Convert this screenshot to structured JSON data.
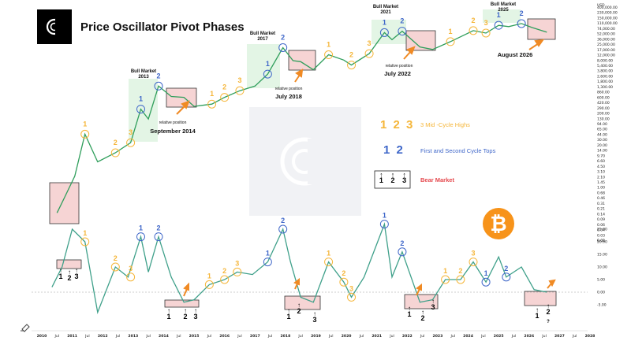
{
  "header": {
    "title": "Price Oscillator Pivot Phases",
    "currency": "USD"
  },
  "colors": {
    "price_line": "#2f9e5b",
    "oscillator_line": "#3fa08a",
    "mid_cycle": "#f5b63a",
    "cycle_top": "#3f67c9",
    "bear_market": "#e5484d",
    "bull_zone": "#d9f2dc",
    "bear_box": "#f6d4d4",
    "arrow_orange": "#f08a24",
    "btc_orange": "#f7931a"
  },
  "legend": {
    "mid_cycle_nums": "1 2 3",
    "mid_cycle_label": "3 Mid -Cycle Highs",
    "tops_nums": "1 2",
    "tops_label": "First and Second Cycle Tops",
    "bear_nums": [
      "1",
      "2",
      "3"
    ],
    "bear_label": "Bear Market"
  },
  "annotations": {
    "bull_2013": [
      "Bull Market",
      "2013"
    ],
    "bull_2017": [
      "Bull Market",
      "2017"
    ],
    "bull_2021": [
      "Bull Market",
      "2021"
    ],
    "bull_2025": [
      "Bull Market",
      "2025"
    ],
    "relpos_2014": [
      "relative position",
      "September 2014"
    ],
    "relpos_2018": [
      "relative position",
      "July 2018"
    ],
    "relpos_2022": [
      "relative position",
      "July 2022"
    ],
    "aug_2026": "August 2026",
    "question_mark": "?"
  },
  "y_axis_right": [
    "400,000.00",
    "230,000.00",
    "150,000.00",
    "110,000.00",
    "74,000.00",
    "52,000.00",
    "36,000.00",
    "25,000.00",
    "17,000.00",
    "12,000.00",
    "8,000.00",
    "5,400.00",
    "3,800.00",
    "2,600.00",
    "1,800.00",
    "1,300.00",
    "860.00",
    "600.00",
    "420.00",
    "290.00",
    "200.00",
    "130.00",
    "94.00",
    "65.00",
    "44.00",
    "30.00",
    "20.00",
    "14.00",
    "9.70",
    "6.60",
    "4.50",
    "3.10",
    "2.10",
    "1.45",
    "1.00",
    "0.68",
    "0.46",
    "0.31",
    "0.21",
    "0.14",
    "0.09",
    "0.06",
    "0.04",
    "0.03",
    "0.01"
  ],
  "osc_axis_right": [
    "0.03",
    "25.00",
    "20.00",
    "15.00",
    "10.00",
    "5.00",
    "0.00",
    "-5.00"
  ],
  "x_axis": [
    "2010",
    "Jul",
    "2011",
    "Jul",
    "2012",
    "Jul",
    "2013",
    "Jul",
    "2014",
    "Jul",
    "2015",
    "Jul",
    "2016",
    "Jul",
    "2017",
    "Jul",
    "2018",
    "Jul",
    "2019",
    "Jul",
    "2020",
    "Jul",
    "2021",
    "Jul",
    "2022",
    "Jul",
    "2023",
    "Jul",
    "2024",
    "Jul",
    "2025",
    "Jul",
    "2026",
    "Jul",
    "2027",
    "Jul",
    "2028"
  ],
  "chart_data": [
    {
      "type": "line",
      "title": "Price Oscillator Pivot Phases",
      "series": [
        {
          "name": "",
          "x": [
            "2010-07",
            "2010-10",
            "2011-02",
            "2011-06",
            "2011-11",
            "2012-06",
            "2012-12",
            "2013-04",
            "2013-07",
            "2013-11",
            "2014-04",
            "2014-09",
            "2015-01",
            "2015-08",
            "2016-01",
            "2016-07",
            "2017-01",
            "2017-06",
            "2017-12",
            "2018-04",
            "2018-07",
            "2018-12",
            "2019-06",
            "2019-12",
            "2020-03",
            "2020-10",
            "2021-04",
            "2021-07",
            "2021-11",
            "2022-06",
            "2022-11",
            "2023-06",
            "2024-03",
            "2024-08",
            "2025-01",
            "2025-05",
            "2025-10",
            "2026-02",
            "2026-08"
          ],
          "values": [
            0.06,
            0.2,
            1.0,
            25,
            3,
            6,
            13,
            170,
            80,
            1000,
            450,
            420,
            210,
            250,
            420,
            700,
            1000,
            2500,
            19000,
            7000,
            6500,
            3500,
            11000,
            7300,
            5000,
            12000,
            60000,
            35000,
            67000,
            20000,
            16500,
            30000,
            70000,
            58000,
            105000,
            95000,
            120000,
            90000,
            62000
          ]
        }
      ],
      "yscale": "log",
      "ylim": [
        0.01,
        400000
      ]
    },
    {
      "type": "line",
      "series": [
        {
          "name": "",
          "x": [
            "2010-05",
            "2010-09",
            "2011-01",
            "2011-06",
            "2011-11",
            "2012-06",
            "2012-11",
            "2013-04",
            "2013-07",
            "2013-11",
            "2014-04",
            "2014-09",
            "2015-01",
            "2015-07",
            "2016-01",
            "2016-06",
            "2016-12",
            "2017-06",
            "2017-12",
            "2018-03",
            "2018-07",
            "2018-12",
            "2019-06",
            "2019-12",
            "2020-03",
            "2020-08",
            "2021-04",
            "2021-07",
            "2021-11",
            "2022-06",
            "2022-11",
            "2023-04",
            "2023-10",
            "2024-03",
            "2024-08",
            "2025-01",
            "2025-04",
            "2025-10",
            "2026-03",
            "2026-08"
          ],
          "values": [
            2,
            10,
            25,
            20,
            -8,
            10,
            6,
            22,
            8,
            22,
            6,
            -4,
            -3,
            3,
            5,
            8,
            7,
            12,
            25,
            12,
            -2,
            -4,
            12,
            4,
            -2,
            6,
            27,
            6,
            16,
            -4,
            -3,
            5,
            5,
            12,
            4,
            14,
            6,
            10,
            1,
            0
          ]
        }
      ],
      "ylim": [
        -5,
        30
      ]
    }
  ]
}
